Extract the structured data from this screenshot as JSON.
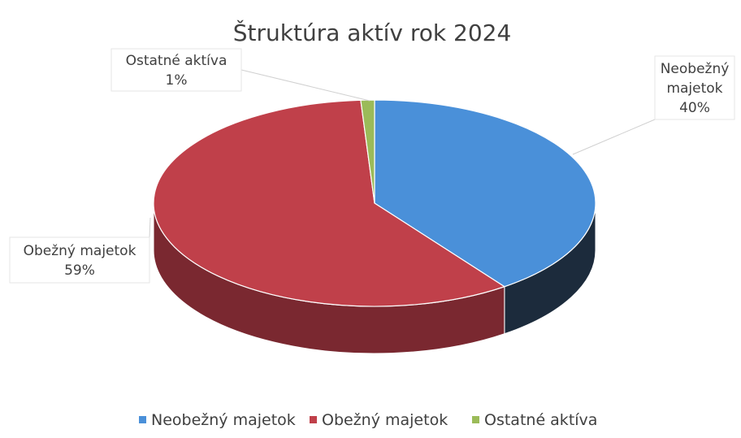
{
  "chart_data": {
    "type": "pie",
    "style": "3d",
    "title": "Štruktúra aktív rok 2024",
    "categories": [
      "Neobežný majetok",
      "Obežný majetok",
      "Ostatné aktíva"
    ],
    "values": [
      40,
      59,
      1
    ],
    "value_labels": [
      "40%",
      "59%",
      "1%"
    ],
    "label_lines": [
      [
        "Neobežný",
        "majetok",
        "40%"
      ],
      [
        "Obežný majetok",
        "59%"
      ],
      [
        "Ostatné aktíva",
        "1%"
      ]
    ],
    "colors": [
      "#4a90d9",
      "#c0404a",
      "#9bbb59"
    ],
    "side_colors": [
      "#1c2b3c",
      "#7a2830",
      "#5d7434"
    ],
    "legend": "bottom"
  }
}
